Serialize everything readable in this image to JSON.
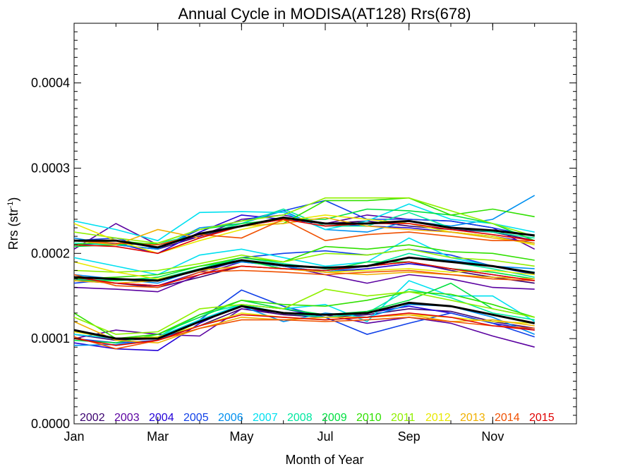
{
  "chart_data": {
    "type": "line",
    "title": "Annual Cycle in MODISA(AT128) Rrs(678)",
    "xlabel": "Month of Year",
    "ylabel_main": "Rrs (str",
    "ylabel_sup": "-1",
    "ylabel_close": ")",
    "x": [
      1,
      2,
      3,
      4,
      5,
      6,
      7,
      8,
      9,
      10,
      11,
      12
    ],
    "xlim": [
      1,
      13
    ],
    "ylim": [
      0,
      0.00047
    ],
    "x_ticks": [
      {
        "value": 1,
        "label": "Jan"
      },
      {
        "value": 3,
        "label": "Mar"
      },
      {
        "value": 5,
        "label": "May"
      },
      {
        "value": 7,
        "label": "Jul"
      },
      {
        "value": 9,
        "label": "Sep"
      },
      {
        "value": 11,
        "label": "Nov"
      }
    ],
    "y_ticks": [
      {
        "value": 0,
        "label": "0.0000"
      },
      {
        "value": 0.0001,
        "label": "0.0001"
      },
      {
        "value": 0.0002,
        "label": "0.0002"
      },
      {
        "value": 0.0003,
        "label": "0.0003"
      },
      {
        "value": 0.0004,
        "label": "0.0004"
      }
    ],
    "legend_placement": "bottom-inside",
    "series": [
      {
        "name": "2002",
        "color": "#3a006f",
        "groups": [
          [
            0.000215,
            0.00021,
            0.000205,
            0.00022,
            0.000232,
            0.00024,
            0.000235,
            0.000238,
            0.000232,
            0.000228,
            0.000225,
            0.000215
          ],
          [
            0.000168,
            0.000165,
            0.00016,
            0.000172,
            0.000185,
            0.000182,
            0.00018,
            0.000185,
            0.00019,
            0.00018,
            0.000172,
            0.000165
          ],
          [
            0.000105,
            9.8e-05,
            0.0001,
            0.000115,
            0.000135,
            0.000128,
            0.000125,
            0.000128,
            0.000135,
            0.000132,
            0.00012,
            0.000112
          ]
        ]
      },
      {
        "name": "2003",
        "color": "#5a00a0",
        "groups": [
          [
            0.000205,
            0.000235,
            0.00021,
            0.00022,
            0.00024,
            0.000245,
            0.000235,
            0.000245,
            0.00024,
            0.000238,
            0.00023,
            0.000205
          ],
          [
            0.00016,
            0.000158,
            0.000155,
            0.000175,
            0.00019,
            0.000185,
            0.000175,
            0.000165,
            0.000175,
            0.00017,
            0.00016,
            0.000158
          ],
          [
            0.0001,
            0.00011,
            0.000105,
            0.000103,
            0.000135,
            0.00013,
            0.000128,
            0.000118,
            0.000125,
            0.000118,
            0.000103,
            9e-05
          ]
        ]
      },
      {
        "name": "2004",
        "color": "#2200d8",
        "groups": [
          [
            0.00021,
            0.000212,
            0.0002,
            0.000225,
            0.000245,
            0.00024,
            0.000235,
            0.000232,
            0.00023,
            0.000225,
            0.00022,
            0.000212
          ],
          [
            0.00017,
            0.000165,
            0.000162,
            0.000178,
            0.000192,
            0.000185,
            0.000178,
            0.000182,
            0.000188,
            0.000182,
            0.000175,
            0.000168
          ],
          [
            9.5e-05,
            8.8e-05,
            8.6e-05,
            0.000118,
            0.00014,
            0.000135,
            0.000125,
            0.00013,
            0.000138,
            0.00013,
            0.000118,
            0.00011
          ]
        ]
      },
      {
        "name": "2005",
        "color": "#1040e8",
        "groups": [
          [
            0.000215,
            0.000218,
            0.000205,
            0.000228,
            0.000238,
            0.00025,
            0.000262,
            0.00024,
            0.00024,
            0.000238,
            0.00023,
            0.00022
          ],
          [
            0.000165,
            0.00017,
            0.000168,
            0.00018,
            0.000195,
            0.0002,
            0.000203,
            0.000198,
            0.000205,
            0.000198,
            0.000185,
            0.000175
          ],
          [
            0.0001,
            9.5e-05,
            9.8e-05,
            0.000122,
            0.000157,
            0.000138,
            0.000125,
            0.000105,
            0.000118,
            0.00013,
            0.000118,
            0.000102
          ]
        ]
      },
      {
        "name": "2006",
        "color": "#0090f0",
        "groups": [
          [
            0.000218,
            0.00021,
            0.000205,
            0.00023,
            0.000235,
            0.00025,
            0.000228,
            0.000225,
            0.000238,
            0.000232,
            0.00024,
            0.000268
          ],
          [
            0.000175,
            0.00017,
            0.000165,
            0.000182,
            0.00019,
            0.000185,
            0.000178,
            0.000185,
            0.000195,
            0.000192,
            0.000185,
            0.000182
          ],
          [
            9.2e-05,
            9.3e-05,
            9.8e-05,
            0.00012,
            0.000138,
            0.00012,
            0.00013,
            0.000125,
            0.00014,
            0.000138,
            0.000125,
            0.000105
          ]
        ]
      },
      {
        "name": "2007",
        "color": "#00e0f0",
        "groups": [
          [
            0.000238,
            0.000228,
            0.000215,
            0.000248,
            0.000249,
            0.000248,
            0.000228,
            0.000238,
            0.000258,
            0.00024,
            0.000235,
            0.000225
          ],
          [
            0.000195,
            0.000185,
            0.000175,
            0.000198,
            0.000205,
            0.000195,
            0.000185,
            0.00019,
            0.000218,
            0.000195,
            0.000185,
            0.000178
          ],
          [
            0.000105,
            0.0001,
            0.000102,
            0.000122,
            0.00014,
            0.000135,
            0.00014,
            0.00012,
            0.000168,
            0.00015,
            0.00015,
            0.00012
          ]
        ]
      },
      {
        "name": "2008",
        "color": "#00e8a0",
        "groups": [
          [
            0.000212,
            0.00021,
            0.000212,
            0.000222,
            0.000235,
            0.000252,
            0.000232,
            0.000232,
            0.000248,
            0.00023,
            0.000225,
            0.000218
          ],
          [
            0.00017,
            0.000168,
            0.00017,
            0.000182,
            0.000195,
            0.000188,
            0.000182,
            0.000185,
            0.0002,
            0.00019,
            0.000182,
            0.000172
          ],
          [
            0.00011,
            0.0001,
            0.000102,
            0.000128,
            0.00014,
            0.00013,
            0.000125,
            0.00013,
            0.000158,
            0.000148,
            0.00013,
            0.000122
          ]
        ]
      },
      {
        "name": "2009",
        "color": "#00e040",
        "groups": [
          [
            0.000208,
            0.00021,
            0.000212,
            0.000228,
            0.000235,
            0.00024,
            0.00024,
            0.000252,
            0.00025,
            0.000245,
            0.000235,
            0.000215
          ],
          [
            0.000168,
            0.000168,
            0.000172,
            0.000185,
            0.000192,
            0.000182,
            0.00018,
            0.00019,
            0.00019,
            0.000182,
            0.000178,
            0.00017
          ],
          [
            9.8e-05,
            9.5e-05,
            0.000105,
            0.000125,
            0.000145,
            0.000135,
            0.000128,
            0.000132,
            0.000145,
            0.000165,
            0.000135,
            0.000125
          ]
        ]
      },
      {
        "name": "2010",
        "color": "#30e000",
        "groups": [
          [
            0.00021,
            0.000215,
            0.00021,
            0.000222,
            0.000232,
            0.000235,
            0.000262,
            0.000262,
            0.000265,
            0.000245,
            0.000252,
            0.000243
          ],
          [
            0.00017,
            0.000172,
            0.000175,
            0.000185,
            0.000195,
            0.00019,
            0.000208,
            0.000205,
            0.00021,
            0.000202,
            0.0002,
            0.000192
          ],
          [
            0.00013,
            0.0001,
            0.000105,
            0.000128,
            0.000145,
            0.00014,
            0.000138,
            0.000145,
            0.000155,
            0.000152,
            0.00014,
            0.000125
          ]
        ]
      },
      {
        "name": "2011",
        "color": "#90f000",
        "groups": [
          [
            0.000225,
            0.000218,
            0.000212,
            0.000228,
            0.000238,
            0.000245,
            0.000265,
            0.000265,
            0.000265,
            0.00025,
            0.000235,
            0.00022
          ],
          [
            0.00018,
            0.000178,
            0.00018,
            0.000188,
            0.000198,
            0.00019,
            0.0002,
            0.000198,
            0.000205,
            0.000195,
            0.000192,
            0.000185
          ],
          [
            0.000125,
            0.000105,
            0.000108,
            0.000135,
            0.00014,
            0.000135,
            0.000158,
            0.00015,
            0.000155,
            0.000145,
            0.000135,
            0.000125
          ]
        ]
      },
      {
        "name": "2012",
        "color": "#e8e800",
        "groups": [
          [
            0.000235,
            0.000215,
            0.0002,
            0.000215,
            0.000228,
            0.000238,
            0.000245,
            0.00024,
            0.000235,
            0.000225,
            0.00022,
            0.00021
          ],
          [
            0.00019,
            0.000178,
            0.00017,
            0.00018,
            0.000185,
            0.000182,
            0.000178,
            0.00018,
            0.000182,
            0.000178,
            0.00018,
            0.000175
          ],
          [
            0.000108,
            0.0001,
            0.000102,
            0.000115,
            0.00013,
            0.000125,
            0.000122,
            0.000125,
            0.000128,
            0.000125,
            0.00012,
            0.000118
          ]
        ]
      },
      {
        "name": "2013",
        "color": "#f0b000",
        "groups": [
          [
            0.000215,
            0.00021,
            0.000228,
            0.000218,
            0.000232,
            0.000235,
            0.000242,
            0.000232,
            0.000228,
            0.000225,
            0.000218,
            0.000212
          ],
          [
            0.000168,
            0.000165,
            0.000168,
            0.00018,
            0.000185,
            0.000182,
            0.000178,
            0.000175,
            0.000178,
            0.000175,
            0.000172,
            0.00017
          ],
          [
            0.00012,
            9.8e-05,
            9.5e-05,
            0.000112,
            0.000125,
            0.000122,
            0.000125,
            0.000125,
            0.000128,
            0.00012,
            0.000122,
            0.000115
          ]
        ]
      },
      {
        "name": "2014",
        "color": "#f05000",
        "groups": [
          [
            0.000215,
            0.000212,
            0.00021,
            0.000222,
            0.000218,
            0.00024,
            0.000215,
            0.000222,
            0.000225,
            0.00022,
            0.000215,
            0.000215
          ],
          [
            0.000175,
            0.000162,
            0.00016,
            0.000178,
            0.00018,
            0.000178,
            0.000175,
            0.000178,
            0.00018,
            0.000175,
            0.00017,
            0.000168
          ],
          [
            0.000102,
            8.8e-05,
            9.8e-05,
            0.000112,
            0.000122,
            0.000122,
            0.00012,
            0.000122,
            0.000125,
            0.00012,
            0.000115,
            0.000112
          ]
        ]
      },
      {
        "name": "2015",
        "color": "#e00000",
        "groups": [
          [
            0.00021,
            0.000208,
            0.0002,
            0.000218,
            0.000232,
            0.00024,
            0.000232,
            0.000235,
            0.000235,
            0.000228,
            0.000222,
            0.000215
          ],
          [
            0.000172,
            0.000165,
            0.000162,
            0.000175,
            0.000185,
            0.000182,
            0.00018,
            0.000185,
            0.00019,
            0.000182,
            0.000175,
            0.000168
          ],
          [
            0.0001,
            9.2e-05,
            9.8e-05,
            0.000115,
            0.000128,
            0.000125,
            0.000122,
            0.000125,
            0.00013,
            0.000125,
            0.000115,
            0.00011
          ]
        ]
      }
    ],
    "mean_series": {
      "color": "#000000",
      "groups": [
        [
          0.000215,
          0.000215,
          0.000207,
          0.000223,
          0.000232,
          0.000242,
          0.000235,
          0.000235,
          0.000238,
          0.00023,
          0.000227,
          0.000221
        ],
        [
          0.000172,
          0.00017,
          0.000168,
          0.000181,
          0.000192,
          0.000186,
          0.000183,
          0.000185,
          0.000195,
          0.00019,
          0.000185,
          0.000177
        ],
        [
          0.00011,
          0.0001,
          0.0001,
          0.00012,
          0.000138,
          0.00013,
          0.000128,
          0.00013,
          0.000142,
          0.000138,
          0.000128,
          0.000118
        ]
      ]
    }
  }
}
